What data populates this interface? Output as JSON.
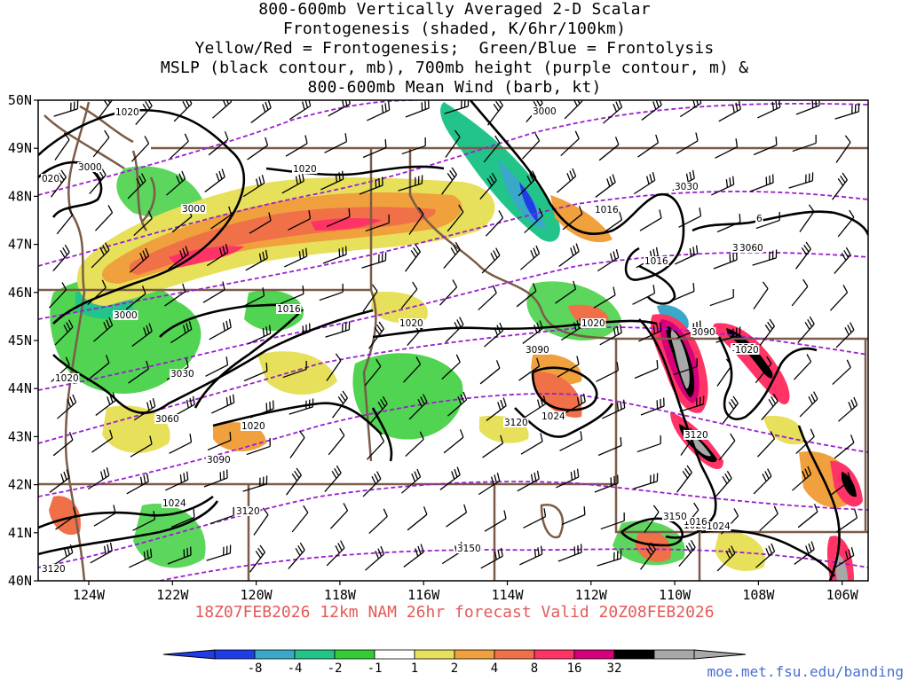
{
  "title_lines": [
    "800-600mb Vertically Averaged 2-D Scalar",
    "Frontogenesis (shaded, K/6hr/100km)",
    "Yellow/Red = Frontogenesis;  Green/Blue = Frontolysis",
    "MSLP (black contour, mb), 700mb height (purple contour, m) &",
    "800-600mb Mean Wind (barb, kt)"
  ],
  "footer": "18Z07FEB2026 12km NAM 26hr forecast Valid 20Z08FEB2026",
  "credit": "moe.met.fsu.edu/banding",
  "lat_labels": [
    "50N",
    "49N",
    "48N",
    "47N",
    "46N",
    "45N",
    "44N",
    "43N",
    "42N",
    "41N",
    "40N"
  ],
  "lon_labels": [
    "124W",
    "122W",
    "120W",
    "118W",
    "116W",
    "114W",
    "112W",
    "110W",
    "108W",
    "106W"
  ],
  "colorbar": {
    "ticks": [
      "-8",
      "-4",
      "-2",
      "-1",
      "1",
      "2",
      "4",
      "8",
      "16",
      "32"
    ],
    "colors": [
      "#1f3de6",
      "#3aa8c8",
      "#22c48a",
      "#33cc33",
      "#ffffff",
      "#e6e05a",
      "#f0a03c",
      "#f07048",
      "#ff3366",
      "#d6007a",
      "#000000",
      "#a8a8a8"
    ]
  },
  "mslp_labels": [
    "1020",
    "1020",
    "1020",
    "1016",
    "1020",
    "1020",
    "1016",
    "1016",
    "1020",
    "1020",
    "1024",
    "1024",
    "1020",
    "1024",
    "1020",
    "1016"
  ],
  "height_labels": [
    "3000",
    "3000",
    "3000",
    "3000",
    "3030",
    "3060",
    "3090",
    "3060",
    "3030",
    "3090",
    "3120",
    "3120",
    "3150",
    "3150",
    "3120",
    "3120",
    "3090",
    "3060",
    "3030",
    "3000"
  ],
  "partial_labels": [
    "020",
    "6"
  ]
}
